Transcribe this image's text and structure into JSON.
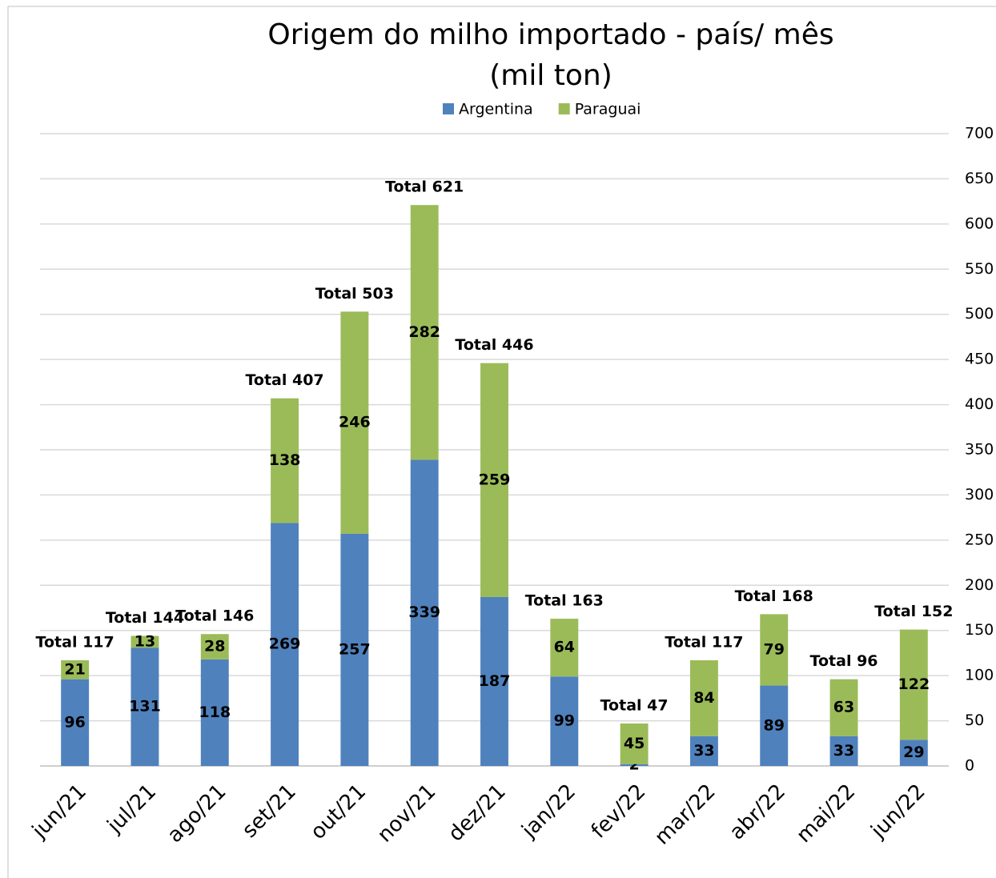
{
  "chart_data": {
    "type": "stacked_bar",
    "title": "Origem do milho importado - país/ mês",
    "subtitle": "(mil ton)",
    "categories": [
      "jun/21",
      "jul/21",
      "ago/21",
      "set/21",
      "out/21",
      "nov/21",
      "dez/21",
      "jan/22",
      "fev/22",
      "mar/22",
      "abr/22",
      "mai/22",
      "jun/22"
    ],
    "series": [
      {
        "name": "Argentina",
        "color": "#4f81bd",
        "values": [
          96,
          131,
          118,
          269,
          257,
          339,
          187,
          99,
          2,
          33,
          89,
          33,
          29
        ]
      },
      {
        "name": "Paraguai",
        "color": "#9bbb59",
        "values": [
          21,
          13,
          28,
          138,
          246,
          282,
          259,
          64,
          45,
          84,
          79,
          63,
          122
        ]
      }
    ],
    "total_labels": [
      "Total 117",
      "Total 144",
      "Total 146",
      "Total 407",
      "Total 503",
      "Total 621",
      "Total 446",
      "Total 163",
      "Total 47",
      "Total 117",
      "Total 168",
      "Total 96",
      "Total 152"
    ],
    "ylim": [
      0,
      700
    ],
    "yticks": [
      0,
      50,
      100,
      150,
      200,
      250,
      300,
      350,
      400,
      450,
      500,
      550,
      600,
      650,
      700
    ],
    "grid": true,
    "legend": "top"
  }
}
